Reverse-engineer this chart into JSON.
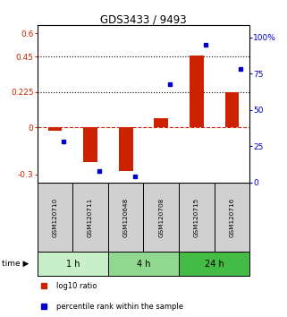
{
  "title": "GDS3433 / 9493",
  "categories": [
    "GSM120710",
    "GSM120711",
    "GSM120648",
    "GSM120708",
    "GSM120715",
    "GSM120716"
  ],
  "time_groups": [
    {
      "label": "1 h",
      "span": [
        0,
        2
      ],
      "color": "#c8f0c8"
    },
    {
      "label": "4 h",
      "span": [
        2,
        4
      ],
      "color": "#90d890"
    },
    {
      "label": "24 h",
      "span": [
        4,
        6
      ],
      "color": "#44bb44"
    }
  ],
  "log10_ratio": [
    -0.02,
    -0.22,
    -0.28,
    0.06,
    0.46,
    0.225
  ],
  "percentile_rank": [
    28,
    8,
    4,
    68,
    95,
    78
  ],
  "ylim_left": [
    -0.35,
    0.65
  ],
  "ylim_right": [
    0,
    108.3
  ],
  "yticks_left": [
    -0.3,
    0.0,
    0.225,
    0.45,
    0.6
  ],
  "yticks_right": [
    0,
    25,
    50,
    75,
    100
  ],
  "ytick_labels_left": [
    "-0.3",
    "0",
    "0.225",
    "0.45",
    "0.6"
  ],
  "ytick_labels_right": [
    "0",
    "25",
    "50",
    "75",
    "100%"
  ],
  "hlines": [
    0.45,
    0.225
  ],
  "bar_width": 0.4,
  "red_color": "#cc2200",
  "blue_color": "#0000cc",
  "zero_line_color": "#cc2200",
  "bg_plot": "#ffffff",
  "bg_sample": "#d0d0d0"
}
